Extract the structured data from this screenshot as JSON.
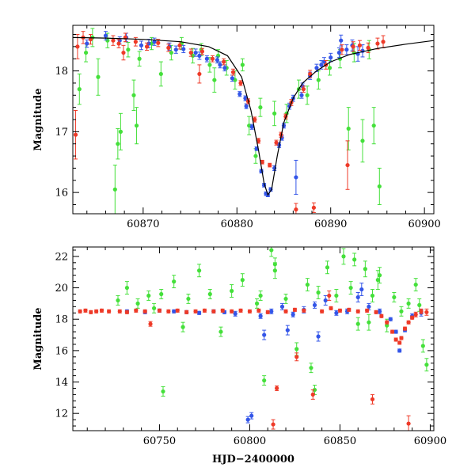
{
  "chart_data": [
    {
      "type": "scatter",
      "ylabel": "Magnitude",
      "xlabel": "",
      "xlim": [
        60862.5,
        60901
      ],
      "ylim": [
        18.75,
        15.65
      ],
      "x_ticks": [
        60870,
        60880,
        60890,
        60900
      ],
      "y_ticks": [
        16,
        17,
        18
      ],
      "grid": false,
      "model_curve": {
        "color": "#000000",
        "x": [
          60862.5,
          60866,
          60870,
          60874,
          60877,
          60879,
          60880.5,
          60881.5,
          60882.3,
          60882.9,
          60883.3,
          60883.7,
          60884.3,
          60885,
          60886,
          60887,
          60888.5,
          60890,
          60892,
          60895,
          60898,
          60901
        ],
        "y": [
          18.55,
          18.54,
          18.52,
          18.48,
          18.4,
          18.25,
          17.9,
          17.35,
          16.7,
          16.15,
          15.96,
          16.05,
          16.6,
          17.15,
          17.55,
          17.8,
          18.0,
          18.15,
          18.27,
          18.37,
          18.44,
          18.5
        ]
      },
      "series": [
        {
          "color": "#3355e8",
          "x": [
            60864.0,
            60867.5,
            60869.8,
            60871.2,
            60872.8,
            60874.3,
            60875.6,
            60876.8,
            60877.9,
            60878.7,
            60879.5,
            60880.3,
            60881.0,
            60881.6,
            60882.1,
            60882.6,
            60882.9,
            60883.1,
            60883.3,
            60883.6,
            60884.0,
            60884.5,
            60885.0,
            60885.6,
            60886.0,
            60886.3,
            60887.0,
            60887.8,
            60888.5,
            60889.3,
            60890.0,
            60890.9,
            60891.7,
            60892.3,
            60892.9,
            60893.4,
            60866.0,
            60868.2,
            60870.6,
            60873.5,
            60876.0,
            60878.2,
            60880.9,
            60884.8,
            60886.9,
            60889.0,
            60891.1
          ],
          "y": [
            18.45,
            18.5,
            18.42,
            18.48,
            18.4,
            18.36,
            18.3,
            18.2,
            18.18,
            18.05,
            17.88,
            17.62,
            17.42,
            17.08,
            16.72,
            16.35,
            16.12,
            15.98,
            15.96,
            16.05,
            16.4,
            16.78,
            17.1,
            17.42,
            17.55,
            16.25,
            17.75,
            17.92,
            18.05,
            18.15,
            18.22,
            18.3,
            18.35,
            18.42,
            18.28,
            18.33,
            18.58,
            18.55,
            18.45,
            18.35,
            18.25,
            18.1,
            17.55,
            16.9,
            17.6,
            18.1,
            18.5
          ],
          "err": [
            0.06,
            0.06,
            0.07,
            0.06,
            0.06,
            0.06,
            0.06,
            0.05,
            0.05,
            0.05,
            0.05,
            0.04,
            0.04,
            0.04,
            0.03,
            0.03,
            0.03,
            0.03,
            0.03,
            0.03,
            0.04,
            0.04,
            0.04,
            0.05,
            0.05,
            0.28,
            0.05,
            0.06,
            0.06,
            0.07,
            0.07,
            0.08,
            0.08,
            0.09,
            0.12,
            0.1,
            0.07,
            0.07,
            0.07,
            0.06,
            0.06,
            0.05,
            0.04,
            0.04,
            0.05,
            0.07,
            0.09
          ]
        },
        {
          "color": "#ee3a28",
          "x": [
            60862.8,
            60863.0,
            60863.6,
            60864.4,
            60866.8,
            60867.4,
            60868.1,
            60869.2,
            60870.4,
            60871.6,
            60872.7,
            60873.9,
            60875.1,
            60876.3,
            60877.4,
            60878.6,
            60879.6,
            60880.4,
            60881.2,
            60881.9,
            60882.3,
            60882.7,
            60883.5,
            60884.2,
            60884.7,
            60885.2,
            60885.8,
            60886.3,
            60887.1,
            60887.8,
            60888.2,
            60889.5,
            60891.2,
            60891.8,
            60892.4,
            60893.1,
            60894.0,
            60895.0,
            60895.6,
            60876.0,
            60867.9
          ],
          "y": [
            16.95,
            18.4,
            18.55,
            18.52,
            18.5,
            18.45,
            18.55,
            18.48,
            18.4,
            18.46,
            18.38,
            18.42,
            18.3,
            18.32,
            18.2,
            18.15,
            17.98,
            17.8,
            17.5,
            17.2,
            16.85,
            16.5,
            16.45,
            16.82,
            16.95,
            17.25,
            17.48,
            15.72,
            17.7,
            17.95,
            15.75,
            18.1,
            18.35,
            16.45,
            18.4,
            18.42,
            18.38,
            18.45,
            18.48,
            17.95,
            18.3
          ],
          "err": [
            0.4,
            0.2,
            0.1,
            0.08,
            0.08,
            0.07,
            0.07,
            0.07,
            0.06,
            0.06,
            0.06,
            0.06,
            0.06,
            0.05,
            0.05,
            0.05,
            0.05,
            0.04,
            0.04,
            0.04,
            0.04,
            0.03,
            0.03,
            0.04,
            0.04,
            0.04,
            0.05,
            0.1,
            0.05,
            0.06,
            0.08,
            0.07,
            0.08,
            0.4,
            0.08,
            0.08,
            0.08,
            0.09,
            0.1,
            0.15,
            0.12
          ]
        },
        {
          "color": "#44e03a",
          "x": [
            60863.2,
            60863.9,
            60864.6,
            60865.2,
            60866.2,
            60867.0,
            60867.6,
            60868.4,
            60869.0,
            60869.6,
            60870.9,
            60871.9,
            60873.0,
            60874.1,
            60875.3,
            60876.2,
            60877.1,
            60878.0,
            60878.9,
            60879.8,
            60880.6,
            60881.3,
            60882.0,
            60882.5,
            60885.3,
            60886.6,
            60887.5,
            60888.7,
            60889.9,
            60891.0,
            60891.9,
            60892.5,
            60893.4,
            60894.1,
            60894.6,
            60895.2,
            60869.3,
            60867.3,
            60877.6,
            60884.0
          ],
          "y": [
            17.7,
            18.3,
            18.55,
            17.9,
            18.5,
            16.05,
            17.0,
            18.35,
            17.6,
            18.2,
            18.45,
            17.95,
            18.3,
            18.45,
            18.25,
            18.35,
            18.1,
            18.25,
            18.05,
            17.85,
            18.1,
            17.1,
            16.6,
            17.4,
            17.3,
            17.7,
            17.6,
            17.85,
            18.05,
            18.2,
            17.05,
            18.3,
            16.85,
            18.35,
            17.1,
            16.1,
            17.1,
            16.8,
            17.85,
            17.3
          ],
          "err": [
            0.25,
            0.15,
            0.15,
            0.3,
            0.12,
            0.4,
            0.3,
            0.12,
            0.25,
            0.12,
            0.1,
            0.2,
            0.12,
            0.1,
            0.12,
            0.1,
            0.12,
            0.1,
            0.12,
            0.15,
            0.1,
            0.15,
            0.12,
            0.15,
            0.15,
            0.15,
            0.15,
            0.15,
            0.12,
            0.15,
            0.35,
            0.15,
            0.35,
            0.15,
            0.3,
            0.3,
            0.3,
            0.25,
            0.2,
            0.2
          ]
        }
      ]
    },
    {
      "type": "scatter",
      "ylabel": "Magnitude",
      "xlabel": "HJD−2400000",
      "xlim": [
        60702,
        60902
      ],
      "ylim": [
        22.6,
        10.9
      ],
      "x_ticks": [
        60750,
        60800,
        60850,
        60900
      ],
      "y_ticks": [
        12,
        14,
        16,
        18,
        20,
        22
      ],
      "grid": false,
      "series": [
        {
          "color": "#3355e8",
          "x": [
            60732,
            60742,
            60750,
            60758,
            60765,
            60772,
            60780,
            60786,
            60792,
            60799,
            60801,
            60806,
            60812,
            60818,
            60824,
            60830,
            60836,
            60842,
            60848,
            60854,
            60860,
            60866,
            60872,
            60878,
            60881,
            60883,
            60886,
            60890,
            60895,
            60808,
            60838,
            60862,
            60821
          ],
          "y": [
            18.5,
            18.45,
            18.55,
            18.5,
            18.45,
            18.4,
            18.5,
            18.45,
            18.35,
            11.6,
            11.85,
            18.2,
            18.5,
            18.8,
            18.3,
            18.6,
            18.9,
            19.2,
            18.4,
            18.5,
            19.4,
            18.8,
            18.5,
            18.0,
            17.2,
            16.0,
            17.3,
            18.2,
            18.4,
            17.0,
            16.9,
            19.9,
            17.3
          ],
          "err": [
            0.1,
            0.1,
            0.1,
            0.1,
            0.1,
            0.1,
            0.1,
            0.1,
            0.15,
            0.2,
            0.2,
            0.15,
            0.15,
            0.2,
            0.15,
            0.2,
            0.2,
            0.3,
            0.15,
            0.15,
            0.3,
            0.2,
            0.15,
            0.1,
            0.1,
            0.1,
            0.1,
            0.15,
            0.2,
            0.3,
            0.3,
            0.4,
            0.3
          ]
        },
        {
          "color": "#ee3a28",
          "x": [
            60706,
            60709,
            60712,
            60715,
            60718,
            60722,
            60728,
            60732,
            60737,
            60742,
            60745,
            60750,
            60755,
            60760,
            60765,
            60770,
            60775,
            60780,
            60785,
            60790,
            60795,
            60800,
            60805,
            60810,
            60813,
            60815,
            60820,
            60825,
            60830,
            60835,
            60840,
            60845,
            60850,
            60855,
            60860,
            60865,
            60870,
            60873,
            60876,
            60879,
            60881,
            60883,
            60884,
            60886,
            60888,
            60890,
            60892,
            60895,
            60898,
            60826,
            60868,
            60888,
            60844
          ],
          "y": [
            18.5,
            18.55,
            18.45,
            18.5,
            18.55,
            18.5,
            18.5,
            18.45,
            18.55,
            18.5,
            17.7,
            18.55,
            18.5,
            18.55,
            18.45,
            18.5,
            18.55,
            18.5,
            18.55,
            18.5,
            18.55,
            18.5,
            18.55,
            18.45,
            11.3,
            13.6,
            18.5,
            18.6,
            18.55,
            13.2,
            18.5,
            18.7,
            18.55,
            18.6,
            18.5,
            18.55,
            18.45,
            18.2,
            17.8,
            17.2,
            16.7,
            16.5,
            16.8,
            17.4,
            17.8,
            18.1,
            18.3,
            18.5,
            18.45,
            15.6,
            12.9,
            11.35,
            19.5
          ],
          "err": [
            0.1,
            0.1,
            0.1,
            0.1,
            0.1,
            0.1,
            0.1,
            0.1,
            0.1,
            0.1,
            0.15,
            0.1,
            0.1,
            0.1,
            0.1,
            0.1,
            0.1,
            0.1,
            0.1,
            0.1,
            0.1,
            0.1,
            0.1,
            0.1,
            0.3,
            0.15,
            0.1,
            0.1,
            0.1,
            0.3,
            0.1,
            0.1,
            0.1,
            0.1,
            0.1,
            0.1,
            0.1,
            0.1,
            0.1,
            0.1,
            0.1,
            0.1,
            0.1,
            0.1,
            0.1,
            0.1,
            0.15,
            0.15,
            0.2,
            0.25,
            0.3,
            0.5,
            0.3
          ]
        },
        {
          "color": "#44e03a",
          "x": [
            60727,
            60732,
            60738,
            60744,
            60747,
            60752,
            60758,
            60763,
            60766,
            60772,
            60778,
            60784,
            60790,
            60796,
            60804,
            60808,
            60814,
            60820,
            60826,
            60832,
            60834,
            60838,
            60843,
            60848,
            60852,
            60856,
            60860,
            60864,
            60868,
            60872,
            60876,
            60880,
            60884,
            60888,
            60892,
            60896,
            60898,
            60751,
            60806,
            60812,
            60836,
            60858,
            60814,
            60866,
            60871,
            60894
          ],
          "y": [
            19.2,
            20.0,
            19.0,
            19.5,
            18.7,
            13.4,
            20.4,
            17.5,
            19.3,
            21.1,
            19.6,
            17.2,
            19.8,
            20.5,
            19.0,
            14.1,
            21.5,
            19.3,
            16.1,
            20.2,
            14.9,
            19.7,
            21.3,
            19.5,
            22.0,
            20.0,
            17.7,
            21.2,
            19.5,
            20.8,
            17.6,
            19.4,
            18.5,
            19.0,
            20.2,
            16.3,
            15.1,
            19.6,
            19.5,
            22.4,
            13.5,
            21.8,
            21.1,
            17.8,
            20.5,
            18.9
          ],
          "err": [
            0.3,
            0.4,
            0.3,
            0.3,
            0.3,
            0.3,
            0.4,
            0.3,
            0.3,
            0.4,
            0.3,
            0.3,
            0.4,
            0.4,
            0.3,
            0.3,
            0.4,
            0.3,
            0.4,
            0.4,
            0.3,
            0.4,
            0.4,
            0.4,
            0.5,
            0.4,
            0.4,
            0.5,
            0.4,
            0.5,
            0.4,
            0.3,
            0.3,
            0.3,
            0.4,
            0.4,
            0.4,
            0.3,
            0.3,
            0.4,
            0.3,
            0.4,
            0.5,
            0.5,
            0.6,
            0.4
          ]
        }
      ]
    }
  ]
}
